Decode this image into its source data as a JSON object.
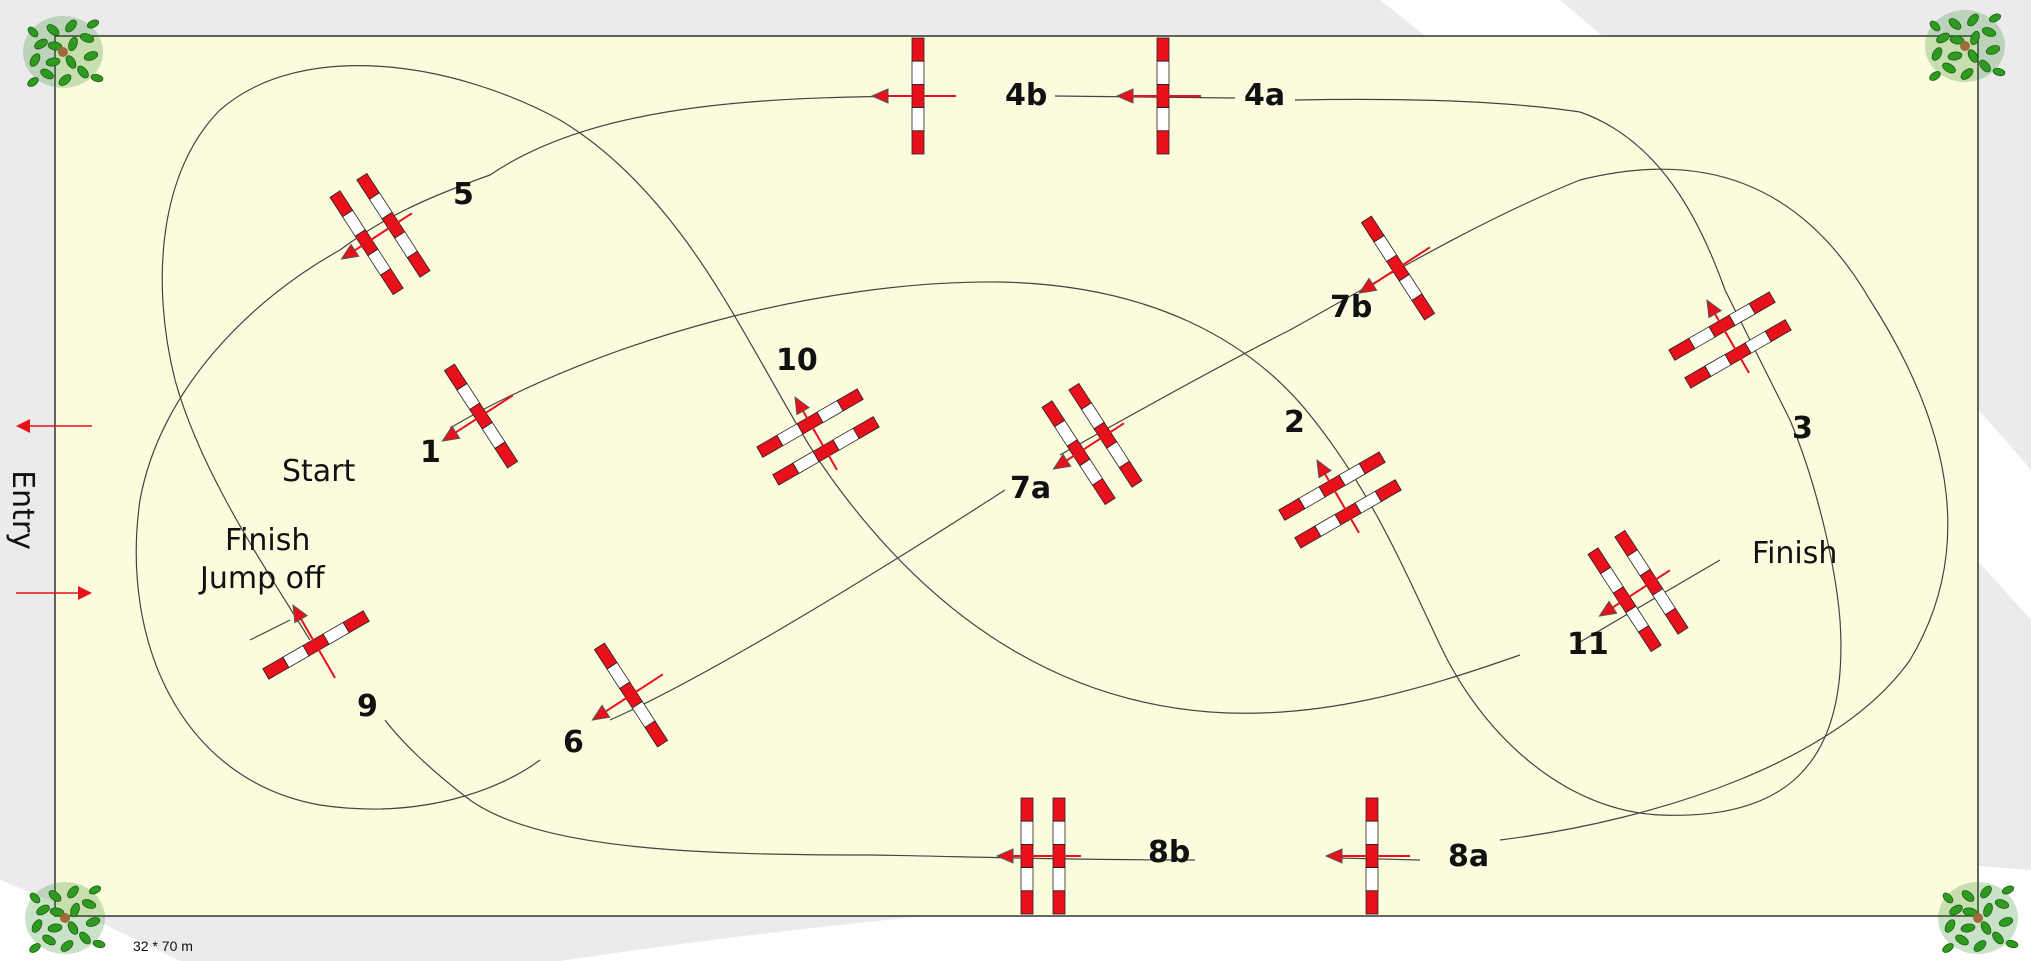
{
  "arena": {
    "fill_color": "#fbfbde",
    "border_color": "#333333",
    "dimensions": "32 * 70 m"
  },
  "colors": {
    "pole_red": "#e8101a",
    "pole_white": "#ffffff",
    "arrow_red": "#e8101a",
    "track": "#444444",
    "tree_green": "#2d8a1e"
  },
  "labels": {
    "start": "Start",
    "finish": "Finish",
    "finish_jump_off_line1": "Finish",
    "finish_jump_off_line2": "Jump off",
    "entry": "Entry"
  },
  "jumps": [
    {
      "id": "1",
      "type": "vertical"
    },
    {
      "id": "2",
      "type": "oxer"
    },
    {
      "id": "3",
      "type": "oxer"
    },
    {
      "id": "4a",
      "type": "vertical"
    },
    {
      "id": "4b",
      "type": "vertical"
    },
    {
      "id": "5",
      "type": "oxer"
    },
    {
      "id": "6",
      "type": "vertical"
    },
    {
      "id": "7a",
      "type": "oxer"
    },
    {
      "id": "7b",
      "type": "vertical"
    },
    {
      "id": "8a",
      "type": "vertical"
    },
    {
      "id": "8b",
      "type": "oxer"
    },
    {
      "id": "9",
      "type": "vertical"
    },
    {
      "id": "10",
      "type": "oxer"
    },
    {
      "id": "11",
      "type": "oxer"
    }
  ],
  "decorations": {
    "corner_tree_icon": "potted-tree-icon",
    "entry_arrow_icon": "arrow-left-icon"
  }
}
